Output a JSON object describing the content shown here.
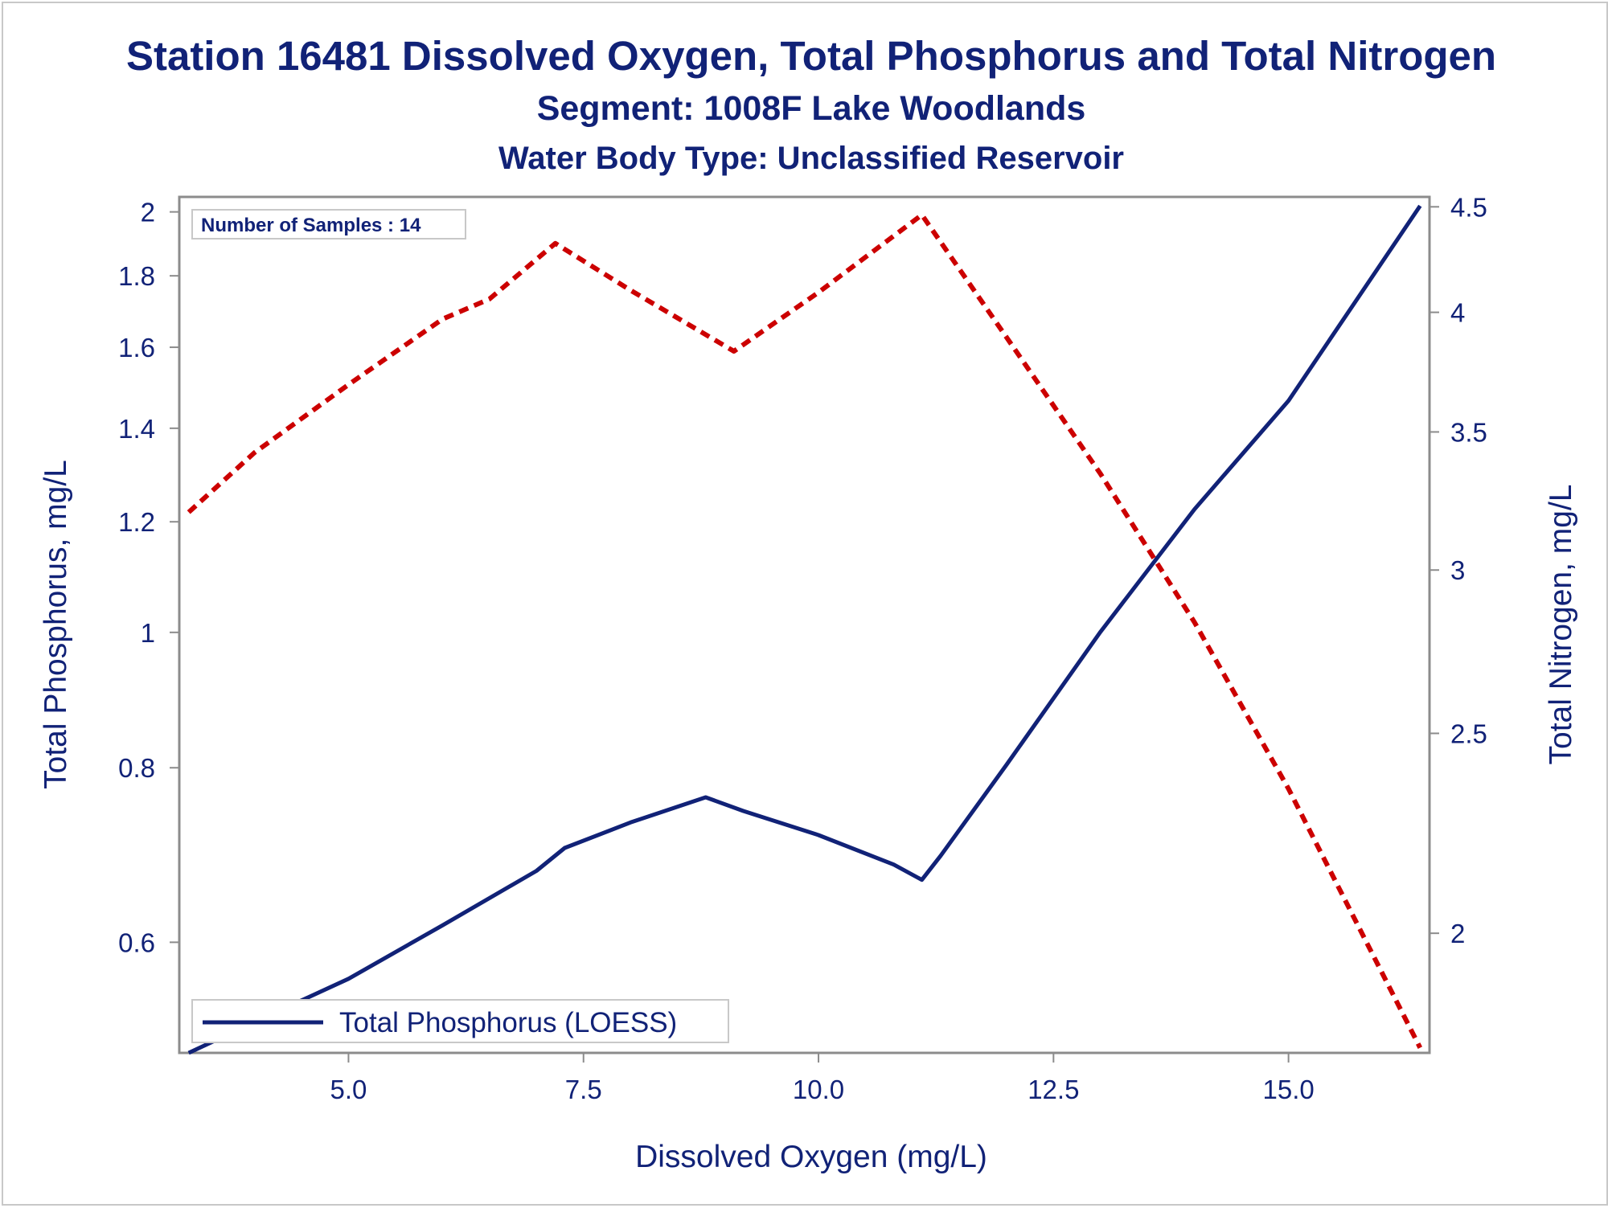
{
  "chart_data": {
    "type": "line",
    "title": "Station 16481  Dissolved Oxygen, Total Phosphorus and Total Nitrogen",
    "subtitle": "Segment: 1008F  Lake Woodlands",
    "subtitle2": "Water Body Type: Unclassified Reservoir",
    "xlabel": "Dissolved Oxygen (mg/L)",
    "ylabel": "Total Phosphorus, mg/L",
    "y2label": "Total Nitrogen, mg/L",
    "x_ticks": [
      "5.0",
      "7.5",
      "10.0",
      "12.5",
      "15.0"
    ],
    "y_ticks": [
      "0.6",
      "0.8",
      "1",
      "1.2",
      "1.4",
      "1.6",
      "1.8",
      "2"
    ],
    "y2_ticks": [
      "2",
      "2.5",
      "3",
      "3.5",
      "4",
      "4.5"
    ],
    "xlim": [
      3.2,
      16.5
    ],
    "ylim": [
      0.5,
      2.05
    ],
    "y2lim": [
      1.75,
      4.55
    ],
    "y_scale": "log",
    "y2_scale": "log",
    "grid": false,
    "inset_text": "Number of Samples : 14",
    "legend": {
      "placement": "bottom-left",
      "entries": [
        "Total Phosphorus (LOESS)"
      ]
    },
    "series": [
      {
        "name": "Total Phosphorus (LOESS)",
        "axis": "left",
        "color": "#112277",
        "style": "solid",
        "x": [
          3.3,
          4.0,
          5.0,
          6.0,
          7.0,
          7.3,
          8.0,
          8.8,
          9.2,
          10.0,
          10.8,
          11.1,
          11.3,
          12.0,
          13.0,
          14.0,
          15.0,
          16.4
        ],
        "y": [
          0.5,
          0.526,
          0.565,
          0.617,
          0.675,
          0.701,
          0.731,
          0.762,
          0.745,
          0.716,
          0.682,
          0.665,
          0.692,
          0.804,
          1.001,
          1.225,
          1.465,
          2.02
        ]
      },
      {
        "name": "Total Nitrogen",
        "axis": "right",
        "color": "#cc0000",
        "style": "dashed",
        "x": [
          3.3,
          4.0,
          5.0,
          6.0,
          6.5,
          7.2,
          8.0,
          9.1,
          10.0,
          11.1,
          12.0,
          13.0,
          14.0,
          15.0,
          16.4
        ],
        "y": [
          3.2,
          3.42,
          3.69,
          3.97,
          4.06,
          4.32,
          4.1,
          3.83,
          4.09,
          4.46,
          3.89,
          3.34,
          2.83,
          2.35,
          1.76
        ]
      }
    ]
  }
}
